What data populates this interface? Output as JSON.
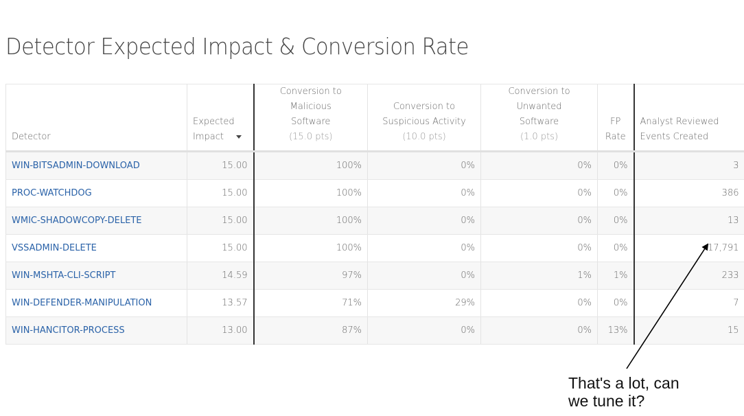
{
  "title": "Detector Expected Impact & Conversion Rate",
  "table": {
    "headers": [
      {
        "line1": "Detector"
      },
      {
        "line1": "Expected",
        "line2": "Impact",
        "sort_icon": "sort-descending-icon"
      },
      {
        "line1": "Conversion to Malicious",
        "line2": "Software",
        "pts": "(15.0 pts)"
      },
      {
        "line1": "Conversion to",
        "line2": "Suspicious Activity",
        "pts": "(10.0 pts)"
      },
      {
        "line1": "Conversion to Unwanted",
        "line2": "Software",
        "pts": "(1.0 pts)"
      },
      {
        "line1": "FP",
        "line2": "Rate"
      },
      {
        "line1": "Analyst Reviewed",
        "line2": "Events Created"
      }
    ],
    "rows": [
      {
        "detector": "WIN-BITSADMIN-DOWNLOAD",
        "impact": "15.00",
        "malicious": "100%",
        "suspicious": "0%",
        "unwanted": "0%",
        "fp": "0%",
        "events": "3"
      },
      {
        "detector": "PROC-WATCHDOG",
        "impact": "15.00",
        "malicious": "100%",
        "suspicious": "0%",
        "unwanted": "0%",
        "fp": "0%",
        "events": "386"
      },
      {
        "detector": "WMIC-SHADOWCOPY-DELETE",
        "impact": "15.00",
        "malicious": "100%",
        "suspicious": "0%",
        "unwanted": "0%",
        "fp": "0%",
        "events": "13"
      },
      {
        "detector": "VSSADMIN-DELETE",
        "impact": "15.00",
        "malicious": "100%",
        "suspicious": "0%",
        "unwanted": "0%",
        "fp": "0%",
        "events": "17,791"
      },
      {
        "detector": "WIN-MSHTA-CLI-SCRIPT",
        "impact": "14.59",
        "malicious": "97%",
        "suspicious": "0%",
        "unwanted": "1%",
        "fp": "1%",
        "events": "233"
      },
      {
        "detector": "WIN-DEFENDER-MANIPULATION",
        "impact": "13.57",
        "malicious": "71%",
        "suspicious": "29%",
        "unwanted": "0%",
        "fp": "0%",
        "events": "7"
      },
      {
        "detector": "WIN-HANCITOR-PROCESS",
        "impact": "13.00",
        "malicious": "87%",
        "suspicious": "0%",
        "unwanted": "0%",
        "fp": "13%",
        "events": "15"
      }
    ]
  },
  "annotation": {
    "line1": "That's a lot, can",
    "line2": "we tune it?",
    "points_to": "17,791"
  },
  "colors": {
    "link": "#2a62a8",
    "stripe": "#f7f7f7",
    "divider": "#333333"
  }
}
